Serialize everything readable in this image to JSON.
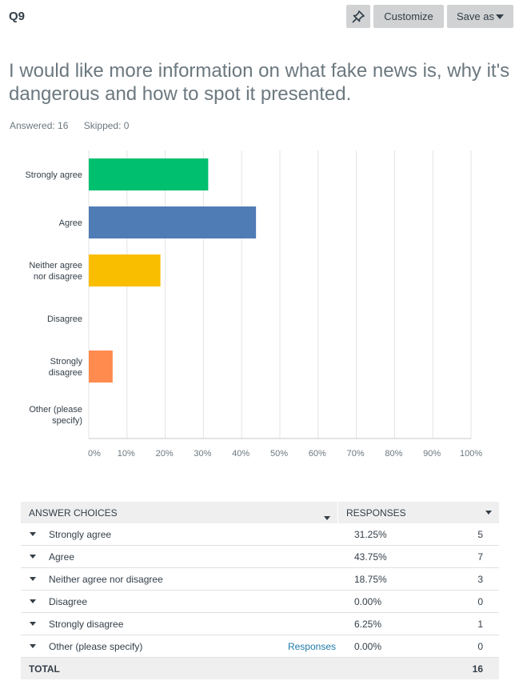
{
  "header": {
    "question_number": "Q9",
    "pin_icon": "pin-icon",
    "customize_label": "Customize",
    "save_as_label": "Save as"
  },
  "question": {
    "title": "I would like more information on what fake news is, why it's dangerous and how to spot it presented.",
    "answered": "Answered: 16",
    "skipped": "Skipped: 0"
  },
  "chart_data": {
    "type": "bar",
    "orientation": "horizontal",
    "categories": [
      "Strongly agree",
      "Agree",
      "Neither agree nor disagree",
      "Disagree",
      "Strongly disagree",
      "Other (please specify)"
    ],
    "category_lines": [
      [
        "Strongly agree"
      ],
      [
        "Agree"
      ],
      [
        "Neither agree",
        "nor disagree"
      ],
      [
        "Disagree"
      ],
      [
        "Strongly",
        "disagree"
      ],
      [
        "Other (please",
        "specify)"
      ]
    ],
    "values": [
      31.25,
      43.75,
      18.75,
      0,
      6.25,
      0
    ],
    "colors": [
      "#00bf6f",
      "#507cb6",
      "#f9be00",
      "#6bc8cd",
      "#ff8b4f",
      "#7d5ba6"
    ],
    "xlim": [
      0,
      100
    ],
    "ticks": [
      "0%",
      "10%",
      "20%",
      "30%",
      "40%",
      "50%",
      "60%",
      "70%",
      "80%",
      "90%",
      "100%"
    ],
    "grid": true
  },
  "table": {
    "headers": {
      "choices": "ANSWER CHOICES",
      "responses": "RESPONSES"
    },
    "rows": [
      {
        "label": "Strongly agree",
        "link": "",
        "pct": "31.25%",
        "count": "5"
      },
      {
        "label": "Agree",
        "link": "",
        "pct": "43.75%",
        "count": "7"
      },
      {
        "label": "Neither agree nor disagree",
        "link": "",
        "pct": "18.75%",
        "count": "3"
      },
      {
        "label": "Disagree",
        "link": "",
        "pct": "0.00%",
        "count": "0"
      },
      {
        "label": "Strongly disagree",
        "link": "",
        "pct": "6.25%",
        "count": "1"
      },
      {
        "label": "Other (please specify)",
        "link": "Responses",
        "pct": "0.00%",
        "count": "0"
      }
    ],
    "total_label": "TOTAL",
    "total_count": "16"
  }
}
